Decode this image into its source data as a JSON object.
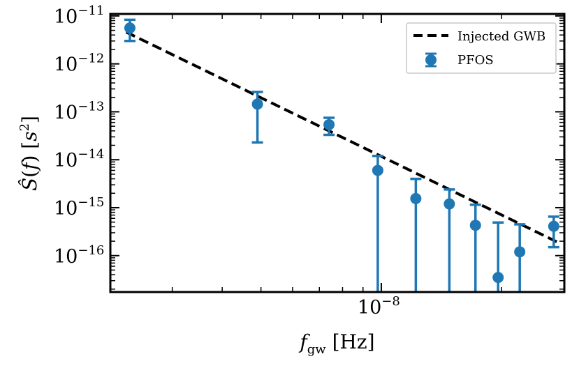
{
  "chart_data": {
    "type": "scatter",
    "title": "",
    "xlabel": "f_gw [Hz]",
    "ylabel": "Ŝ(f) [s²]",
    "x_scale": "log",
    "y_scale": "log",
    "xlim": [
      2.1e-09,
      2.87e-08
    ],
    "ylim": [
      1.74e-17,
      1.1e-11
    ],
    "grid": false,
    "legend_position": "top-right",
    "x_ticks": [
      {
        "value": 1e-08,
        "mantissa": "10",
        "exp": "−8"
      }
    ],
    "y_ticks": [
      {
        "value": 1e-11,
        "mantissa": "10",
        "exp": "−11"
      },
      {
        "value": 1e-12,
        "mantissa": "10",
        "exp": "−12"
      },
      {
        "value": 1e-13,
        "mantissa": "10",
        "exp": "−13"
      },
      {
        "value": 1e-14,
        "mantissa": "10",
        "exp": "−14"
      },
      {
        "value": 1e-15,
        "mantissa": "10",
        "exp": "−15"
      },
      {
        "value": 1e-16,
        "mantissa": "10",
        "exp": "−16"
      }
    ],
    "series": [
      {
        "name": "Injected GWB",
        "kind": "line",
        "style": "dashed",
        "color": "#000000",
        "x": [
          2.3e-09,
          2.8e-08
        ],
        "y": [
          4.6e-12,
          1.8e-16
        ]
      },
      {
        "name": "PFOS",
        "kind": "errorbar",
        "color": "#1f77b4",
        "points": [
          {
            "x": 2.35e-09,
            "y": 5.6e-12,
            "ylo": 3e-12,
            "yhi": 8.3e-12
          },
          {
            "x": 4.9e-09,
            "y": 1.45e-13,
            "ylo": 2.3e-14,
            "yhi": 2.6e-13
          },
          {
            "x": 7.4e-09,
            "y": 5.4e-14,
            "ylo": 3.3e-14,
            "yhi": 7.5e-14
          },
          {
            "x": 9.8e-09,
            "y": 6e-15,
            "ylo": 1e-20,
            "yhi": 1.2e-14
          },
          {
            "x": 1.22e-08,
            "y": 1.55e-15,
            "ylo": 1e-20,
            "yhi": 4e-15
          },
          {
            "x": 1.48e-08,
            "y": 1.2e-15,
            "ylo": 1e-20,
            "yhi": 2.4e-15
          },
          {
            "x": 1.72e-08,
            "y": 4.3e-16,
            "ylo": 1e-20,
            "yhi": 1.15e-15
          },
          {
            "x": 1.96e-08,
            "y": 3.5e-17,
            "ylo": 1e-20,
            "yhi": 4.9e-16
          },
          {
            "x": 2.22e-08,
            "y": 1.2e-16,
            "ylo": 1e-20,
            "yhi": 4.5e-16
          },
          {
            "x": 2.7e-08,
            "y": 4.1e-16,
            "ylo": 1.5e-16,
            "yhi": 6.5e-16
          }
        ]
      }
    ],
    "legend": [
      {
        "label": "Injected GWB",
        "marker": "dashed-line"
      },
      {
        "label": "PFOS",
        "marker": "errorbar-dot"
      }
    ]
  }
}
